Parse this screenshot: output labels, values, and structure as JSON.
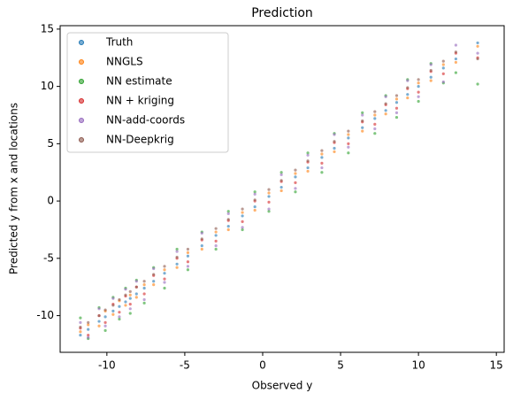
{
  "chart_data": {
    "type": "scatter",
    "title": "Prediction",
    "x_label": "Observed y",
    "y_label": "Predicted y from x and locations",
    "xlim": [
      -13,
      15.5
    ],
    "ylim": [
      -13.2,
      15.3
    ],
    "xticks": [
      -10,
      -5,
      0,
      5,
      10,
      15
    ],
    "yticks": [
      -10,
      -5,
      0,
      5,
      10,
      15
    ],
    "legend": "upper left",
    "x": [
      -11.7,
      -11.2,
      -10.5,
      -10.1,
      -9.6,
      -9.2,
      -8.8,
      -8.5,
      -8.1,
      -7.6,
      -7.0,
      -6.3,
      -5.5,
      -4.8,
      -3.9,
      -3.0,
      -2.2,
      -1.3,
      -0.5,
      0.4,
      1.2,
      2.1,
      2.9,
      3.8,
      4.6,
      5.5,
      6.4,
      7.2,
      7.9,
      8.6,
      9.3,
      10.0,
      10.8,
      11.6,
      12.4,
      13.8
    ],
    "series": [
      {
        "name": "Truth",
        "color": "#1f77b4",
        "values": [
          -11.7,
          -11.2,
          -10.5,
          -10.1,
          -9.6,
          -9.2,
          -8.8,
          -8.5,
          -8.1,
          -7.6,
          -7.0,
          -6.3,
          -5.5,
          -4.8,
          -3.9,
          -3.0,
          -2.2,
          -1.3,
          -0.5,
          0.4,
          1.2,
          2.1,
          2.9,
          3.8,
          4.6,
          5.5,
          6.4,
          7.2,
          7.9,
          8.6,
          9.3,
          10.0,
          10.8,
          11.6,
          12.4,
          13.8
        ]
      },
      {
        "name": "NNGLS",
        "color": "#ff7f0e",
        "values": [
          -11.4,
          -10.8,
          -10.9,
          -9.6,
          -9.9,
          -8.7,
          -9.1,
          -8.2,
          -8.4,
          -7.3,
          -7.3,
          -6.0,
          -5.8,
          -4.5,
          -4.2,
          -2.7,
          -2.5,
          -1.0,
          -0.8,
          0.7,
          0.9,
          2.4,
          2.6,
          4.1,
          4.3,
          5.8,
          6.1,
          7.5,
          7.6,
          8.9,
          9.0,
          10.3,
          10.5,
          11.9,
          12.1,
          13.5
        ]
      },
      {
        "name": "NN estimate",
        "color": "#2ca02c",
        "values": [
          -10.2,
          -12.0,
          -9.3,
          -11.3,
          -8.4,
          -10.3,
          -7.6,
          -9.8,
          -6.9,
          -8.9,
          -5.8,
          -7.6,
          -4.2,
          -6.0,
          -2.7,
          -4.2,
          -0.9,
          -2.5,
          0.8,
          -0.9,
          2.5,
          0.8,
          4.2,
          2.5,
          5.9,
          4.2,
          7.7,
          5.9,
          9.2,
          7.3,
          10.6,
          8.7,
          12.0,
          10.3,
          11.2,
          10.2
        ]
      },
      {
        "name": "NN + kriging",
        "color": "#d62728",
        "values": [
          -11.1,
          -11.7,
          -10.0,
          -10.6,
          -9.0,
          -9.7,
          -8.3,
          -9.0,
          -7.5,
          -8.1,
          -6.5,
          -6.8,
          -5.0,
          -5.3,
          -3.4,
          -3.5,
          -1.7,
          -1.8,
          0.0,
          -0.1,
          1.7,
          1.6,
          3.4,
          3.3,
          5.1,
          5.0,
          6.9,
          6.7,
          8.4,
          8.1,
          9.8,
          9.5,
          11.3,
          11.1,
          12.9,
          12.5
        ]
      },
      {
        "name": "NN-add-coords",
        "color": "#9467bd",
        "values": [
          -10.6,
          -11.9,
          -9.4,
          -10.9,
          -8.5,
          -10.1,
          -7.7,
          -9.4,
          -7.0,
          -8.6,
          -5.9,
          -7.1,
          -4.4,
          -5.7,
          -2.8,
          -3.9,
          -1.1,
          -2.3,
          0.6,
          -0.7,
          2.3,
          1.1,
          4.0,
          2.9,
          5.8,
          4.7,
          7.5,
          6.3,
          9.1,
          7.7,
          10.5,
          9.1,
          11.9,
          10.4,
          13.6,
          12.9
        ]
      },
      {
        "name": "NN-Deepkrig",
        "color": "#8c564b",
        "values": [
          -11.0,
          -10.6,
          -10.0,
          -9.5,
          -9.1,
          -8.6,
          -8.2,
          -7.9,
          -7.5,
          -7.0,
          -6.4,
          -5.7,
          -4.9,
          -4.2,
          -3.3,
          -2.4,
          -1.6,
          -0.7,
          0.1,
          1.0,
          1.8,
          2.7,
          3.5,
          4.4,
          5.2,
          6.1,
          7.0,
          7.8,
          8.5,
          9.2,
          9.9,
          10.6,
          11.4,
          12.2,
          13.0,
          12.4
        ]
      }
    ]
  }
}
